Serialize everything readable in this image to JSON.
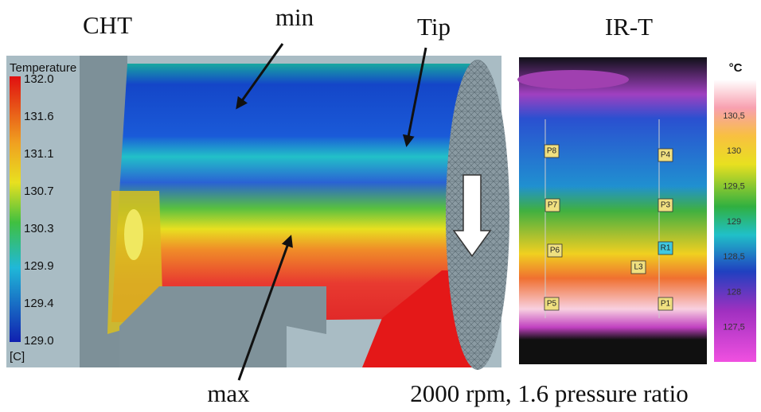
{
  "labels": {
    "cht": "CHT",
    "min": "min",
    "tip": "Tip",
    "irt": "IR-T",
    "max": "max",
    "caption": "2000 rpm, 1.6 pressure ratio"
  },
  "cht_legend": {
    "title": "Temperature",
    "ticks": [
      "132.0",
      "131.6",
      "131.1",
      "130.7",
      "130.3",
      "129.9",
      "129.4",
      "129.0"
    ],
    "unit": "[C]"
  },
  "ir_legend": {
    "unit": "°C",
    "ticks": [
      "130,5",
      "130",
      "129,5",
      "129",
      "128,5",
      "128",
      "127,5"
    ]
  },
  "ir_points": [
    "P8",
    "P4",
    "P7",
    "P3",
    "P6",
    "R1",
    "L3",
    "P5",
    "P1"
  ]
}
